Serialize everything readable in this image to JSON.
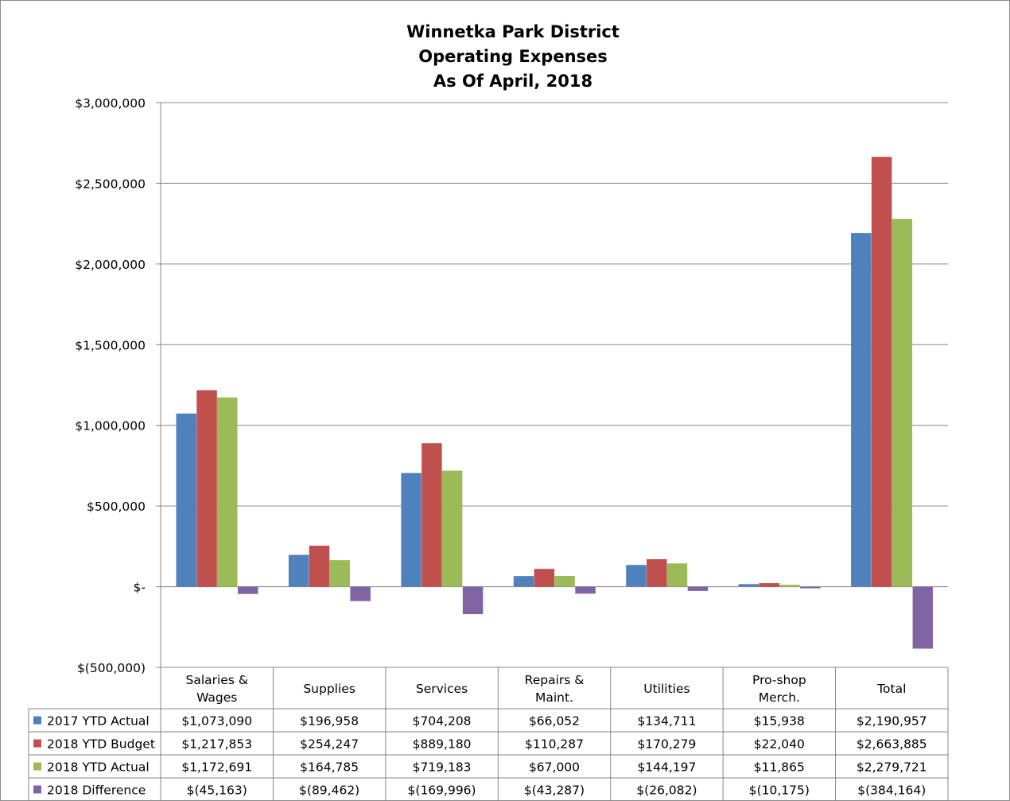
{
  "chart_data": {
    "type": "bar",
    "title": [
      "Winnetka Park District",
      "Operating Expenses",
      "As Of April, 2018"
    ],
    "categories": [
      [
        "Salaries &",
        "Wages"
      ],
      [
        "Supplies"
      ],
      [
        "Services"
      ],
      [
        "Repairs &",
        "Maint."
      ],
      [
        "Utilities"
      ],
      [
        "Pro-shop",
        "Merch."
      ],
      [
        "Total"
      ]
    ],
    "ylim": [
      -500000,
      3000000
    ],
    "yticks": [
      3000000,
      2500000,
      2000000,
      1500000,
      1000000,
      500000,
      0,
      -500000
    ],
    "ytick_labels": [
      "$3,000,000",
      "$2,500,000",
      "$2,000,000",
      "$1,500,000",
      "$1,000,000",
      "$500,000",
      "$-",
      "$(500,000)"
    ],
    "grid": true,
    "legend_placement": "data-table",
    "series": [
      {
        "name": "2017 YTD Actual",
        "color": "#4f81bd",
        "values": [
          1073090,
          196958,
          704208,
          66052,
          134711,
          15938,
          2190957
        ],
        "labels": [
          "$1,073,090",
          "$196,958",
          "$704,208",
          "$66,052",
          "$134,711",
          "$15,938",
          "$2,190,957"
        ]
      },
      {
        "name": "2018 YTD Budget",
        "color": "#c0504d",
        "values": [
          1217853,
          254247,
          889180,
          110287,
          170279,
          22040,
          2663885
        ],
        "labels": [
          "$1,217,853",
          "$254,247",
          "$889,180",
          "$110,287",
          "$170,279",
          "$22,040",
          "$2,663,885"
        ]
      },
      {
        "name": "2018 YTD Actual",
        "color": "#9bbb59",
        "values": [
          1172691,
          164785,
          719183,
          67000,
          144197,
          11865,
          2279721
        ],
        "labels": [
          "$1,172,691",
          "$164,785",
          "$719,183",
          "$67,000",
          "$144,197",
          "$11,865",
          "$2,279,721"
        ]
      },
      {
        "name": "2018 Difference",
        "color": "#8064a2",
        "values": [
          -45163,
          -89462,
          -169996,
          -43287,
          -26082,
          -10175,
          -384164
        ],
        "labels": [
          "$(45,163)",
          "$(89,462)",
          "$(169,996)",
          "$(43,287)",
          "$(26,082)",
          "$(10,175)",
          "$(384,164)"
        ]
      }
    ]
  }
}
